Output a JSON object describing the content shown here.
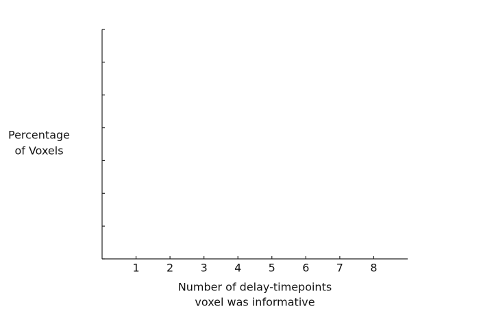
{
  "chart_data": {
    "type": "bar",
    "xlabel": [
      "Number of delay-timepoints",
      "voxel was informative"
    ],
    "ylabel": [
      "Percentage",
      "of Voxels"
    ],
    "series": [],
    "xlim": [
      0,
      9
    ],
    "xticks": [
      1,
      2,
      3,
      4,
      5,
      6,
      7,
      8
    ],
    "ylim": [
      0,
      7
    ],
    "yticks": [
      0,
      1,
      2,
      3,
      4,
      5,
      6,
      7
    ],
    "ytick_labels": false,
    "grid": false
  }
}
